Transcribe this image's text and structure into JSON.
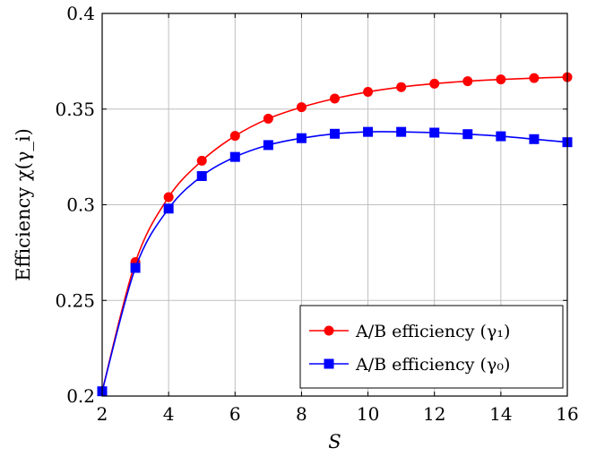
{
  "chart_data": {
    "type": "line",
    "xlabel": "S",
    "ylabel": "Efficiency χ(γ_i)",
    "xlim": [
      2,
      16
    ],
    "ylim": [
      0.2,
      0.4
    ],
    "xticks": [
      "2",
      "4",
      "6",
      "8",
      "10",
      "12",
      "14",
      "16"
    ],
    "yticks": [
      "0.2",
      "0.25",
      "0.3",
      "0.35",
      "0.4"
    ],
    "grid": true,
    "legend_position": "bottom-right",
    "x": [
      2,
      3,
      4,
      5,
      6,
      7,
      8,
      9,
      10,
      11,
      12,
      13,
      14,
      15,
      16
    ],
    "series": [
      {
        "name": "A/B efficiency (γ₁)",
        "color": "#ff0000",
        "marker": "circle",
        "values": [
          0.2025,
          0.27,
          0.304,
          0.323,
          0.336,
          0.345,
          0.351,
          0.3555,
          0.359,
          0.3615,
          0.3633,
          0.3646,
          0.3655,
          0.3662,
          0.3667
        ]
      },
      {
        "name": "A/B efficiency (γ₀)",
        "color": "#0000ff",
        "marker": "square",
        "values": [
          0.2025,
          0.267,
          0.298,
          0.315,
          0.325,
          0.3312,
          0.3348,
          0.3371,
          0.3381,
          0.3381,
          0.3377,
          0.3369,
          0.3358,
          0.3343,
          0.3327
        ]
      }
    ]
  }
}
